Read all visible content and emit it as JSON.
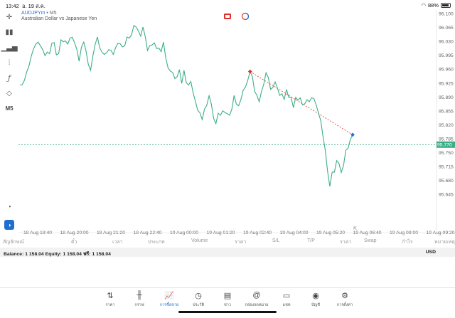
{
  "status": {
    "time": "13:42",
    "date": "อ. 19 ส.ค.",
    "battery": "88%"
  },
  "symbol": {
    "code": "AUDJPYm",
    "timeframe": "M5",
    "description": "Australian Dollar vs Japanese Yen"
  },
  "toolbar": {
    "timeframe_label": "M5"
  },
  "chart_data": {
    "type": "line",
    "price_axis": [
      "96.100",
      "96.065",
      "96.030",
      "95.995",
      "95.960",
      "95.925",
      "95.890",
      "95.855",
      "95.820",
      "95.785",
      "95.750",
      "95.715",
      "95.680",
      "95.645"
    ],
    "current_price": "95.770",
    "x_labels": [
      "18 Aug 18:40",
      "18 Aug 20:00",
      "18 Aug 21:20",
      "18 Aug 22:40",
      "19 Aug 00:00",
      "19 Aug 01:20",
      "19 Aug 02:40",
      "19 Aug 04:00",
      "19 Aug 05:20",
      "19 Aug 06:40",
      "19 Aug 08:00",
      "19 Aug 09:20"
    ],
    "series": [
      {
        "values": [
          95.92,
          95.921,
          95.932,
          95.953,
          95.968,
          95.993,
          96.011,
          96.023,
          96.028,
          96.019,
          96.009,
          95.994,
          96.003,
          95.999,
          96.025,
          96.027,
          95.996,
          95.999,
          96.034,
          96.029,
          96.031,
          96.023,
          96.038,
          96.04,
          96.026,
          96.01,
          95.98,
          96.015,
          96.028,
          96.006,
          95.972,
          95.957,
          95.993,
          96.022,
          96.041,
          96.014,
          96.003,
          95.997,
          96.001,
          96.009,
          96.007,
          95.997,
          96.014,
          96.025,
          96.024,
          96.016,
          96.019,
          96.041,
          96.038,
          96.047,
          96.07,
          96.066,
          96.056,
          96.043,
          96.066,
          96.042,
          96.007,
          96.019,
          96.021,
          96.026,
          96.012,
          96.013,
          96.004,
          96.028,
          95.988,
          95.963,
          95.955,
          95.952,
          95.936,
          95.941,
          95.959,
          95.924,
          95.957,
          95.926,
          95.92,
          95.929,
          95.901,
          95.879,
          95.857,
          95.85,
          95.833,
          95.859,
          95.869,
          95.893,
          95.872,
          95.836,
          95.823,
          95.849,
          95.844,
          95.855,
          95.851,
          95.848,
          95.844,
          95.859,
          95.894,
          95.872,
          95.868,
          95.884,
          95.907,
          95.915,
          95.932,
          95.954,
          95.941,
          95.904,
          95.894,
          95.878,
          95.904,
          95.922,
          95.951,
          95.939,
          95.909,
          95.914,
          95.928,
          95.913,
          95.894,
          95.898,
          95.884,
          95.909,
          95.889,
          95.889,
          95.863,
          95.889,
          95.882,
          95.888,
          95.87,
          95.873,
          95.883,
          95.878,
          95.888,
          95.886,
          95.87,
          95.85,
          95.831,
          95.791,
          95.756,
          95.704,
          95.665,
          95.701,
          95.701,
          95.73,
          95.723,
          95.7,
          95.717,
          95.756,
          95.761,
          95.783,
          95.795
        ]
      }
    ],
    "grid": false,
    "trade_markers": [
      "sell-entry-marker",
      "buy-marker"
    ]
  },
  "table_header": {
    "col_symbol": "สัญลักษณ์",
    "col_ticket": "ตั๋ว",
    "col_time": "เวลา",
    "col_type": "ประเภท",
    "col_volume": "Volume",
    "col_price": "ราคา",
    "col_sl": "S/L",
    "col_tp": "T/P",
    "col_price2": "ราคา",
    "col_swap": "Swap",
    "col_profit": "กำไร",
    "col_comment": "หมายเหตุ"
  },
  "balance": {
    "text": "Balance: 1 158.04 Equity: 1 158.04 ฟรี: 1 158.04",
    "currency": "USD"
  },
  "nav": [
    {
      "label": "ราคา",
      "icon": "quotes-icon"
    },
    {
      "label": "กราฟ",
      "icon": "chart-icon"
    },
    {
      "label": "การซื้อขาย",
      "icon": "trade-icon"
    },
    {
      "label": "ประวัติ",
      "icon": "history-icon"
    },
    {
      "label": "ข่าว",
      "icon": "news-icon"
    },
    {
      "label": "กล่องจดหมาย",
      "icon": "mailbox-icon"
    },
    {
      "label": "แชท",
      "icon": "chat-icon"
    },
    {
      "label": "บัญชี",
      "icon": "account-icon"
    },
    {
      "label": "การตั้งค่า",
      "icon": "settings-icon"
    }
  ],
  "colors": {
    "line": "#3cae86",
    "accent": "#1f6fd1",
    "current_price_bg": "#3cae86",
    "sell_marker": "#e0302b"
  }
}
